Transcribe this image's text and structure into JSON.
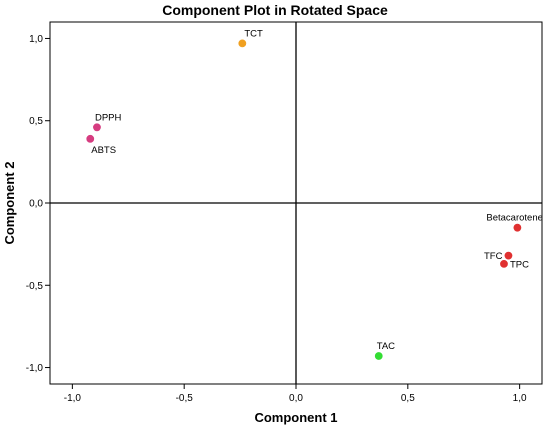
{
  "chart_data": {
    "type": "scatter",
    "title": "Component Plot in Rotated Space",
    "xlabel": "Component 1",
    "ylabel": "Component 2",
    "xlim": [
      -1.1,
      1.1
    ],
    "ylim": [
      -1.1,
      1.1
    ],
    "xticks": [
      {
        "value": -1.0,
        "label": "-1,0"
      },
      {
        "value": -0.5,
        "label": "-0,5"
      },
      {
        "value": 0.0,
        "label": "0,0"
      },
      {
        "value": 0.5,
        "label": "0,5"
      },
      {
        "value": 1.0,
        "label": "1,0"
      }
    ],
    "yticks": [
      {
        "value": 1.0,
        "label": "1,0"
      },
      {
        "value": 0.5,
        "label": "0,5"
      },
      {
        "value": 0.0,
        "label": "0,0"
      },
      {
        "value": -0.5,
        "label": "-0,5"
      },
      {
        "value": -1.0,
        "label": "-1,0"
      }
    ],
    "grid": false,
    "reference_lines": {
      "x": 0,
      "y": 0
    },
    "points": [
      {
        "label": "TCT",
        "x": -0.24,
        "y": 0.97,
        "color": "#f0a020",
        "label_pos": "above"
      },
      {
        "label": "DPPH",
        "x": -0.89,
        "y": 0.46,
        "color": "#d63c80",
        "label_pos": "above"
      },
      {
        "label": "ABTS",
        "x": -0.92,
        "y": 0.39,
        "color": "#d63c80",
        "label_pos": "below"
      },
      {
        "label": "Betacarotene",
        "x": 0.99,
        "y": -0.15,
        "color": "#e03030",
        "label_pos": "above"
      },
      {
        "label": "TFC",
        "x": 0.95,
        "y": -0.32,
        "color": "#e03030",
        "label_pos": "left"
      },
      {
        "label": "TPC",
        "x": 0.93,
        "y": -0.37,
        "color": "#e03030",
        "label_pos": "right"
      },
      {
        "label": "TAC",
        "x": 0.37,
        "y": -0.93,
        "color": "#33dd33",
        "label_pos": "above"
      }
    ]
  }
}
